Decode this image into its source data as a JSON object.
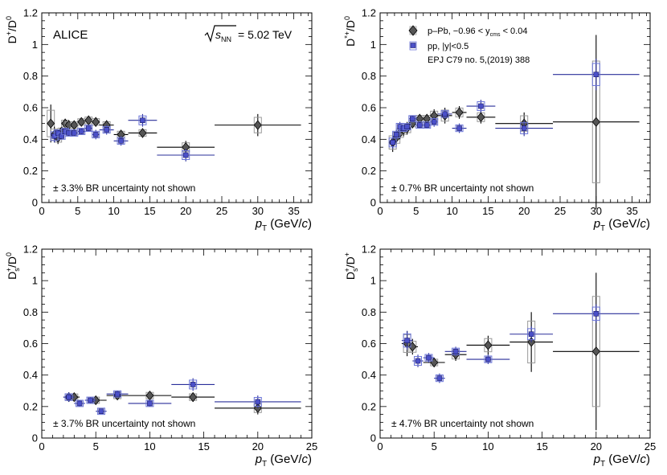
{
  "collaboration": "ALICE",
  "energy_label": "= 5.02 TeV",
  "energy_sym": "s",
  "energy_sub": "NN",
  "legend": {
    "ppb_text": "p–Pb, −0.96 < y",
    "ppb_sub": "cms",
    "ppb_tail": " < 0.04",
    "pp_text": "pp, |y|<0.5",
    "ref_text": "EPJ C79 no. 5,(2019) 388",
    "colors": {
      "ppb": "#1a1a1a",
      "pp": "#3a40b5"
    }
  },
  "colors": {
    "ppb_marker": "#555555",
    "pp_marker": "#4b50c8",
    "pp_box": "#6a74d8",
    "ppb_box": "#999999"
  },
  "chart_data": [
    {
      "type": "scatter",
      "ylabel_main": "D",
      "ylabel_num_sup": "+",
      "ylabel_den": "D",
      "ylabel_den_sup": "0",
      "xlabel_main": "p",
      "xlabel_sub": "T",
      "xlabel_unit": " (GeV/",
      "xlabel_unit_c": "c",
      "xlabel_close": ")",
      "xlim": [
        0,
        37.5
      ],
      "ylim": [
        0,
        1.2
      ],
      "xticks": [
        0,
        5,
        10,
        15,
        20,
        25,
        30,
        35
      ],
      "yticks": [
        0,
        0.2,
        0.4,
        0.6,
        0.8,
        1,
        1.2
      ],
      "ytick_labels": [
        "0",
        "0.2",
        "0.4",
        "0.6",
        "0.8",
        "1",
        "1.2"
      ],
      "note": "± 3.3% BR uncertainty not shown",
      "series": [
        {
          "name": "pp",
          "points": [
            {
              "x": 1.75,
              "xl": 1.5,
              "xh": 2.0,
              "y": 0.42,
              "e": 0.04
            },
            {
              "x": 2.25,
              "xl": 2.0,
              "xh": 2.5,
              "y": 0.44,
              "e": 0.02
            },
            {
              "x": 2.75,
              "xl": 2.5,
              "xh": 3.0,
              "y": 0.42,
              "e": 0.02
            },
            {
              "x": 3.25,
              "xl": 3.0,
              "xh": 3.5,
              "y": 0.45,
              "e": 0.02
            },
            {
              "x": 3.75,
              "xl": 3.5,
              "xh": 4.0,
              "y": 0.44,
              "e": 0.02
            },
            {
              "x": 4.5,
              "xl": 4.0,
              "xh": 5.0,
              "y": 0.44,
              "e": 0.02
            },
            {
              "x": 5.5,
              "xl": 5.0,
              "xh": 6.0,
              "y": 0.45,
              "e": 0.02
            },
            {
              "x": 6.5,
              "xl": 6.0,
              "xh": 7.0,
              "y": 0.47,
              "e": 0.02
            },
            {
              "x": 7.5,
              "xl": 7.0,
              "xh": 8.0,
              "y": 0.43,
              "e": 0.03
            },
            {
              "x": 9.0,
              "xl": 8.0,
              "xh": 10.0,
              "y": 0.46,
              "e": 0.03
            },
            {
              "x": 11.0,
              "xl": 10.0,
              "xh": 12.0,
              "y": 0.39,
              "e": 0.03
            },
            {
              "x": 14.0,
              "xl": 12.0,
              "xh": 16.0,
              "y": 0.52,
              "e": 0.04
            },
            {
              "x": 20.0,
              "xl": 16.0,
              "xh": 24.0,
              "y": 0.3,
              "e": 0.04
            }
          ]
        },
        {
          "name": "p-Pb",
          "points": [
            {
              "x": 1.25,
              "xl": 1.0,
              "xh": 1.5,
              "y": 0.5,
              "e": 0.12
            },
            {
              "x": 1.75,
              "xl": 1.5,
              "xh": 2.0,
              "y": 0.43,
              "e": 0.05
            },
            {
              "x": 2.25,
              "xl": 2.0,
              "xh": 2.5,
              "y": 0.41,
              "e": 0.04
            },
            {
              "x": 2.75,
              "xl": 2.5,
              "xh": 3.0,
              "y": 0.45,
              "e": 0.03
            },
            {
              "x": 3.25,
              "xl": 3.0,
              "xh": 3.5,
              "y": 0.5,
              "e": 0.03
            },
            {
              "x": 3.75,
              "xl": 3.5,
              "xh": 4.0,
              "y": 0.49,
              "e": 0.03
            },
            {
              "x": 4.5,
              "xl": 4.0,
              "xh": 5.0,
              "y": 0.49,
              "e": 0.02
            },
            {
              "x": 5.5,
              "xl": 5.0,
              "xh": 6.0,
              "y": 0.51,
              "e": 0.02
            },
            {
              "x": 6.5,
              "xl": 6.0,
              "xh": 7.0,
              "y": 0.52,
              "e": 0.03
            },
            {
              "x": 7.5,
              "xl": 7.0,
              "xh": 8.0,
              "y": 0.51,
              "e": 0.03
            },
            {
              "x": 9.0,
              "xl": 8.0,
              "xh": 10.0,
              "y": 0.49,
              "e": 0.03
            },
            {
              "x": 11.0,
              "xl": 10.0,
              "xh": 12.0,
              "y": 0.43,
              "e": 0.03
            },
            {
              "x": 14.0,
              "xl": 12.0,
              "xh": 16.0,
              "y": 0.44,
              "e": 0.03
            },
            {
              "x": 20.0,
              "xl": 16.0,
              "xh": 24.0,
              "y": 0.35,
              "e": 0.04
            },
            {
              "x": 30.0,
              "xl": 24.0,
              "xh": 36.0,
              "y": 0.49,
              "e": 0.07
            }
          ]
        }
      ]
    },
    {
      "type": "scatter",
      "ylabel_main": "D",
      "ylabel_num_sup": "*+",
      "ylabel_den": "D",
      "ylabel_den_sup": "0",
      "xlabel_main": "p",
      "xlabel_sub": "T",
      "xlabel_unit": " (GeV/",
      "xlabel_unit_c": "c",
      "xlabel_close": ")",
      "xlim": [
        0,
        37.5
      ],
      "ylim": [
        0,
        1.2
      ],
      "xticks": [
        0,
        5,
        10,
        15,
        20,
        25,
        30,
        35
      ],
      "yticks": [
        0,
        0.2,
        0.4,
        0.6,
        0.8,
        1,
        1.2
      ],
      "ytick_labels": [
        "0",
        "0.2",
        "0.4",
        "0.6",
        "0.8",
        "1",
        "1.2"
      ],
      "note": "± 0.7% BR uncertainty not shown",
      "series": [
        {
          "name": "pp",
          "points": [
            {
              "x": 1.75,
              "xl": 1.5,
              "xh": 2.0,
              "y": 0.38,
              "e": 0.04
            },
            {
              "x": 2.25,
              "xl": 2.0,
              "xh": 2.5,
              "y": 0.43,
              "e": 0.03
            },
            {
              "x": 2.75,
              "xl": 2.5,
              "xh": 3.0,
              "y": 0.48,
              "e": 0.03
            },
            {
              "x": 3.25,
              "xl": 3.0,
              "xh": 3.5,
              "y": 0.47,
              "e": 0.02
            },
            {
              "x": 3.75,
              "xl": 3.5,
              "xh": 4.0,
              "y": 0.48,
              "e": 0.02
            },
            {
              "x": 4.5,
              "xl": 4.0,
              "xh": 5.0,
              "y": 0.53,
              "e": 0.02
            },
            {
              "x": 5.5,
              "xl": 5.0,
              "xh": 6.0,
              "y": 0.49,
              "e": 0.02
            },
            {
              "x": 6.5,
              "xl": 6.0,
              "xh": 7.0,
              "y": 0.49,
              "e": 0.02
            },
            {
              "x": 7.5,
              "xl": 7.0,
              "xh": 8.0,
              "y": 0.51,
              "e": 0.03
            },
            {
              "x": 9.0,
              "xl": 8.0,
              "xh": 10.0,
              "y": 0.56,
              "e": 0.03
            },
            {
              "x": 11.0,
              "xl": 10.0,
              "xh": 12.0,
              "y": 0.47,
              "e": 0.03
            },
            {
              "x": 14.0,
              "xl": 12.0,
              "xh": 16.0,
              "y": 0.61,
              "e": 0.04
            },
            {
              "x": 20.0,
              "xl": 16.0,
              "xh": 24.0,
              "y": 0.47,
              "e": 0.05
            },
            {
              "x": 30.0,
              "xl": 24.0,
              "xh": 36.0,
              "y": 0.81,
              "e": 0.1
            }
          ]
        },
        {
          "name": "p-Pb",
          "points": [
            {
              "x": 1.75,
              "xl": 1.5,
              "xh": 2.0,
              "y": 0.38,
              "e": 0.06
            },
            {
              "x": 2.25,
              "xl": 2.0,
              "xh": 2.5,
              "y": 0.41,
              "e": 0.05
            },
            {
              "x": 2.75,
              "xl": 2.5,
              "xh": 3.0,
              "y": 0.44,
              "e": 0.04
            },
            {
              "x": 3.25,
              "xl": 3.0,
              "xh": 3.5,
              "y": 0.46,
              "e": 0.04
            },
            {
              "x": 3.75,
              "xl": 3.5,
              "xh": 4.0,
              "y": 0.47,
              "e": 0.04
            },
            {
              "x": 4.5,
              "xl": 4.0,
              "xh": 5.0,
              "y": 0.5,
              "e": 0.03
            },
            {
              "x": 5.5,
              "xl": 5.0,
              "xh": 6.0,
              "y": 0.53,
              "e": 0.03
            },
            {
              "x": 6.5,
              "xl": 6.0,
              "xh": 7.0,
              "y": 0.53,
              "e": 0.03
            },
            {
              "x": 7.5,
              "xl": 7.0,
              "xh": 8.0,
              "y": 0.55,
              "e": 0.04
            },
            {
              "x": 9.0,
              "xl": 8.0,
              "xh": 10.0,
              "y": 0.55,
              "e": 0.05
            },
            {
              "x": 11.0,
              "xl": 10.0,
              "xh": 12.0,
              "y": 0.57,
              "e": 0.04
            },
            {
              "x": 14.0,
              "xl": 12.0,
              "xh": 16.0,
              "y": 0.54,
              "e": 0.04
            },
            {
              "x": 20.0,
              "xl": 16.0,
              "xh": 24.0,
              "y": 0.5,
              "e": 0.07
            },
            {
              "x": 30.0,
              "xl": 24.0,
              "xh": 36.0,
              "y": 0.51,
              "e": 0.55
            }
          ]
        }
      ]
    },
    {
      "type": "scatter",
      "ylabel_main": "D",
      "ylabel_num_sub": "s",
      "ylabel_num_sup": "+",
      "ylabel_den": "D",
      "ylabel_den_sup": "0",
      "xlabel_main": "p",
      "xlabel_sub": "T",
      "xlabel_unit": " (GeV/",
      "xlabel_unit_c": "c",
      "xlabel_close": ")",
      "xlim": [
        0,
        25
      ],
      "ylim": [
        0,
        1.2
      ],
      "xticks": [
        0,
        5,
        10,
        15,
        20,
        25
      ],
      "yticks": [
        0,
        0.2,
        0.4,
        0.6,
        0.8,
        1,
        1.2
      ],
      "ytick_labels": [
        "0",
        "0.2",
        "0.4",
        "0.6",
        "0.8",
        "1",
        "1.2"
      ],
      "note": "± 3.7% BR uncertainty not shown",
      "series": [
        {
          "name": "pp",
          "points": [
            {
              "x": 2.5,
              "xl": 2.0,
              "xh": 3.0,
              "y": 0.26,
              "e": 0.03
            },
            {
              "x": 3.5,
              "xl": 3.0,
              "xh": 4.0,
              "y": 0.22,
              "e": 0.02
            },
            {
              "x": 4.5,
              "xl": 4.0,
              "xh": 5.0,
              "y": 0.24,
              "e": 0.02
            },
            {
              "x": 5.5,
              "xl": 5.0,
              "xh": 6.0,
              "y": 0.17,
              "e": 0.015
            },
            {
              "x": 7.0,
              "xl": 6.0,
              "xh": 8.0,
              "y": 0.28,
              "e": 0.02
            },
            {
              "x": 10.0,
              "xl": 8.0,
              "xh": 12.0,
              "y": 0.22,
              "e": 0.02
            },
            {
              "x": 14.0,
              "xl": 12.0,
              "xh": 16.0,
              "y": 0.34,
              "e": 0.04
            },
            {
              "x": 20.0,
              "xl": 16.0,
              "xh": 24.0,
              "y": 0.23,
              "e": 0.04
            }
          ]
        },
        {
          "name": "p-Pb",
          "points": [
            {
              "x": 2.5,
              "xl": 2.0,
              "xh": 3.0,
              "y": 0.26,
              "e": 0.03
            },
            {
              "x": 3.0,
              "xl": 2.5,
              "xh": 3.5,
              "y": 0.26,
              "e": 0.02
            },
            {
              "x": 5.0,
              "xl": 4.0,
              "xh": 6.0,
              "y": 0.24,
              "e": 0.015
            },
            {
              "x": 7.0,
              "xl": 6.0,
              "xh": 8.0,
              "y": 0.27,
              "e": 0.02
            },
            {
              "x": 10.0,
              "xl": 8.0,
              "xh": 12.0,
              "y": 0.27,
              "e": 0.02
            },
            {
              "x": 14.0,
              "xl": 12.0,
              "xh": 16.0,
              "y": 0.26,
              "e": 0.03
            },
            {
              "x": 20.0,
              "xl": 16.0,
              "xh": 24.0,
              "y": 0.19,
              "e": 0.04
            }
          ]
        }
      ]
    },
    {
      "type": "scatter",
      "ylabel_main": "D",
      "ylabel_num_sub": "s",
      "ylabel_num_sup": "+",
      "ylabel_den": "D",
      "ylabel_den_sup": "+",
      "xlabel_main": "p",
      "xlabel_sub": "T",
      "xlabel_unit": " (GeV/",
      "xlabel_unit_c": "c",
      "xlabel_close": ")",
      "xlim": [
        0,
        25
      ],
      "ylim": [
        0,
        1.2
      ],
      "xticks": [
        0,
        5,
        10,
        15,
        20,
        25
      ],
      "yticks": [
        0,
        0.2,
        0.4,
        0.6,
        0.8,
        1,
        1.2
      ],
      "ytick_labels": [
        "0",
        "0.2",
        "0.4",
        "0.6",
        "0.8",
        "1",
        "1.2"
      ],
      "note": "± 4.7% BR uncertainty not shown",
      "series": [
        {
          "name": "pp",
          "points": [
            {
              "x": 2.5,
              "xl": 2.0,
              "xh": 3.0,
              "y": 0.62,
              "e": 0.06
            },
            {
              "x": 3.5,
              "xl": 3.0,
              "xh": 4.0,
              "y": 0.49,
              "e": 0.04
            },
            {
              "x": 4.5,
              "xl": 4.0,
              "xh": 5.0,
              "y": 0.51,
              "e": 0.03
            },
            {
              "x": 5.5,
              "xl": 5.0,
              "xh": 6.0,
              "y": 0.38,
              "e": 0.03
            },
            {
              "x": 7.0,
              "xl": 6.0,
              "xh": 8.0,
              "y": 0.55,
              "e": 0.03
            },
            {
              "x": 10.0,
              "xl": 8.0,
              "xh": 12.0,
              "y": 0.5,
              "e": 0.03
            },
            {
              "x": 14.0,
              "xl": 12.0,
              "xh": 16.0,
              "y": 0.66,
              "e": 0.05
            },
            {
              "x": 20.0,
              "xl": 16.0,
              "xh": 24.0,
              "y": 0.79,
              "e": 0.06
            }
          ]
        },
        {
          "name": "p-Pb",
          "points": [
            {
              "x": 2.5,
              "xl": 2.0,
              "xh": 3.0,
              "y": 0.6,
              "e": 0.08
            },
            {
              "x": 3.0,
              "xl": 2.5,
              "xh": 3.5,
              "y": 0.58,
              "e": 0.05
            },
            {
              "x": 5.0,
              "xl": 4.0,
              "xh": 6.0,
              "y": 0.48,
              "e": 0.03
            },
            {
              "x": 7.0,
              "xl": 6.0,
              "xh": 8.0,
              "y": 0.53,
              "e": 0.04
            },
            {
              "x": 10.0,
              "xl": 8.0,
              "xh": 12.0,
              "y": 0.59,
              "e": 0.06
            },
            {
              "x": 14.0,
              "xl": 12.0,
              "xh": 16.0,
              "y": 0.61,
              "e": 0.19
            },
            {
              "x": 20.0,
              "xl": 16.0,
              "xh": 24.0,
              "y": 0.55,
              "e": 0.5
            }
          ]
        }
      ]
    }
  ]
}
